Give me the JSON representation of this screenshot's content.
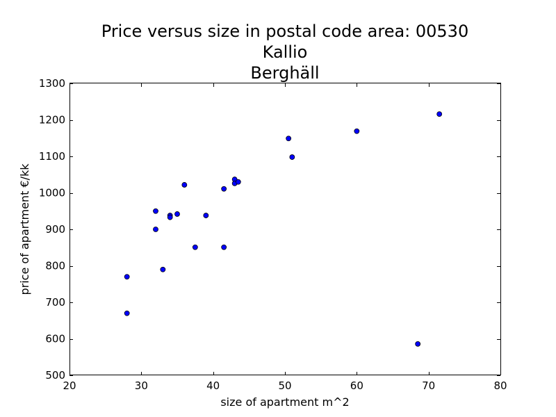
{
  "chart_data": {
    "type": "scatter",
    "title": [
      "Price versus size in postal code area: 00530",
      "Kallio",
      "Berghäll"
    ],
    "xlabel": "size of apartment m^2",
    "ylabel": "price of apartment €/kk",
    "xlim": [
      20,
      80
    ],
    "ylim": [
      500,
      1300
    ],
    "xticks": [
      "20",
      "30",
      "40",
      "50",
      "60",
      "70",
      "80"
    ],
    "yticks": [
      "500",
      "600",
      "700",
      "800",
      "900",
      "1000",
      "1100",
      "1200",
      "1300"
    ],
    "grid": false,
    "marker_color": "#0000ff",
    "marker_edge_color": "#000000",
    "points": [
      {
        "x": 28,
        "y": 770
      },
      {
        "x": 28,
        "y": 670
      },
      {
        "x": 32,
        "y": 950
      },
      {
        "x": 32,
        "y": 900
      },
      {
        "x": 33,
        "y": 790
      },
      {
        "x": 34,
        "y": 938
      },
      {
        "x": 34,
        "y": 933
      },
      {
        "x": 35,
        "y": 942
      },
      {
        "x": 36,
        "y": 1022
      },
      {
        "x": 37.5,
        "y": 851
      },
      {
        "x": 39,
        "y": 938
      },
      {
        "x": 41.5,
        "y": 1011
      },
      {
        "x": 41.5,
        "y": 851
      },
      {
        "x": 43,
        "y": 1037
      },
      {
        "x": 43,
        "y": 1026
      },
      {
        "x": 43.5,
        "y": 1030
      },
      {
        "x": 50.5,
        "y": 1149
      },
      {
        "x": 51,
        "y": 1098
      },
      {
        "x": 60,
        "y": 1169
      },
      {
        "x": 68.5,
        "y": 586
      },
      {
        "x": 71.5,
        "y": 1216
      }
    ]
  }
}
